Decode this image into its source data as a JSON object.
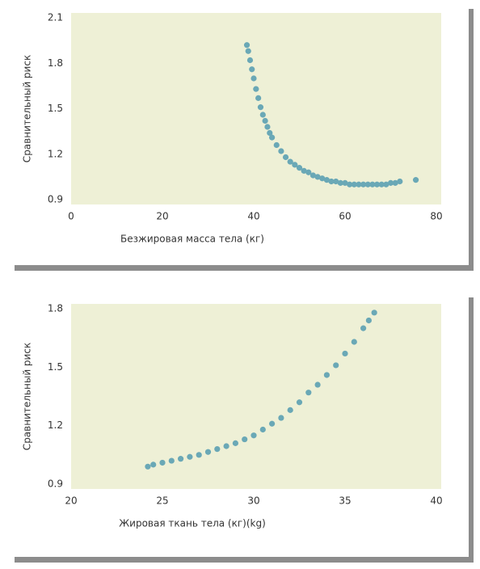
{
  "chart_data": [
    {
      "type": "scatter",
      "y_label": "Сравнительный риск",
      "x_label": "Безжировая масса тела (кг)",
      "xlim": [
        0,
        80
      ],
      "xticks": [
        0,
        20,
        40,
        60,
        80
      ],
      "ylim": [
        0.9,
        2.1
      ],
      "yticks": [
        0.9,
        1.2,
        1.5,
        1.8,
        2.1
      ],
      "color": "#6aa8b6",
      "x": [
        38.5,
        38.8,
        39.2,
        39.6,
        40.0,
        40.5,
        41.0,
        41.5,
        42,
        42.5,
        43,
        43.5,
        44,
        45,
        46,
        47,
        48,
        49,
        50,
        51,
        52,
        53,
        54,
        55,
        56,
        57,
        58,
        59,
        60,
        61,
        62,
        63,
        64,
        65,
        66,
        67,
        68,
        69,
        70,
        71,
        72,
        75.5
      ],
      "values": [
        1.92,
        1.88,
        1.82,
        1.76,
        1.7,
        1.63,
        1.57,
        1.51,
        1.46,
        1.42,
        1.38,
        1.34,
        1.31,
        1.26,
        1.22,
        1.18,
        1.15,
        1.13,
        1.11,
        1.09,
        1.08,
        1.06,
        1.05,
        1.04,
        1.03,
        1.02,
        1.02,
        1.01,
        1.01,
        1.0,
        1.0,
        1.0,
        1.0,
        1.0,
        1.0,
        1.0,
        1.0,
        1.0,
        1.01,
        1.01,
        1.02,
        1.03
      ]
    },
    {
      "type": "scatter",
      "y_label": "Сравнительный риск",
      "x_label": "Жировая ткань тела (кг)(kg)",
      "xlim": [
        20,
        40
      ],
      "xticks": [
        20,
        25,
        30,
        35,
        40
      ],
      "ylim": [
        0.9,
        1.8
      ],
      "yticks": [
        0.9,
        1.2,
        1.5,
        1.8
      ],
      "color": "#6aa8b6",
      "x": [
        24.2,
        24.5,
        25,
        25.5,
        26,
        26.5,
        27,
        27.5,
        28,
        28.5,
        29,
        29.5,
        30,
        30.5,
        31,
        31.5,
        32,
        32.5,
        33,
        33.5,
        34,
        34.5,
        35,
        35.5,
        36,
        36.3,
        36.6
      ],
      "values": [
        0.99,
        1.0,
        1.01,
        1.02,
        1.03,
        1.04,
        1.05,
        1.065,
        1.08,
        1.095,
        1.11,
        1.13,
        1.15,
        1.18,
        1.21,
        1.24,
        1.28,
        1.32,
        1.37,
        1.41,
        1.46,
        1.51,
        1.57,
        1.63,
        1.7,
        1.74,
        1.78
      ]
    }
  ]
}
